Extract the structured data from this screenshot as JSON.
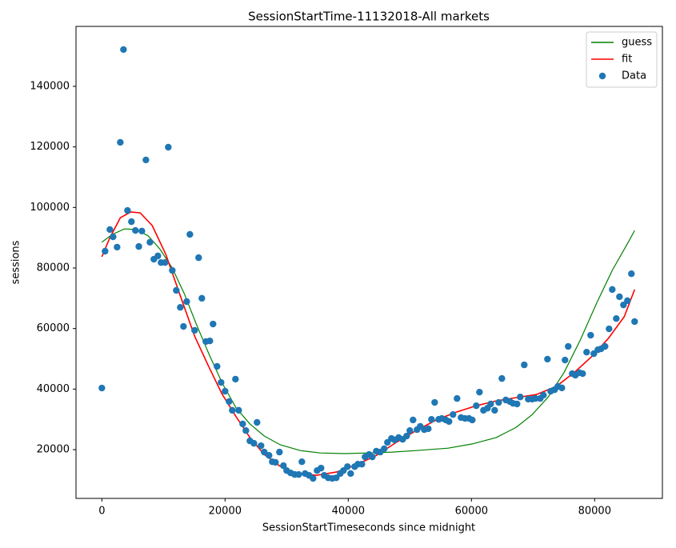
{
  "chart_data": {
    "type": "line",
    "title": "SessionStartTime-11132018-All markets",
    "x_label": "SessionStartTimeseconds since midnight",
    "y_label": "sessions",
    "xlim": [
      -4200,
      91000
    ],
    "ylim": [
      3900,
      159800
    ],
    "xticks": [
      0,
      20000,
      40000,
      60000,
      80000
    ],
    "yticks": [
      20000,
      40000,
      60000,
      80000,
      100000,
      120000,
      140000
    ],
    "legend": "upper right",
    "series": [
      {
        "name": "guess",
        "type": "line",
        "color": "#008000",
        "x": [
          0,
          1690,
          3640,
          5580,
          7530,
          9480,
          11430,
          13380,
          15320,
          17530,
          19610,
          21820,
          24030,
          26360,
          28960,
          32210,
          35450,
          39350,
          43250,
          47140,
          51040,
          56230,
          60130,
          64030,
          67270,
          69870,
          72470,
          75060,
          77660,
          80260,
          82860,
          85450,
          86490
        ],
        "values": [
          88500,
          91100,
          92900,
          92700,
          90600,
          86100,
          80000,
          71500,
          61500,
          50900,
          41700,
          33700,
          28500,
          24500,
          21600,
          19700,
          18900,
          18700,
          18900,
          19200,
          19700,
          20500,
          21900,
          24000,
          27400,
          31600,
          37400,
          45600,
          56200,
          68100,
          79200,
          88500,
          92400
        ]
      },
      {
        "name": "fit",
        "type": "line",
        "color": "#ff0000",
        "x": [
          0,
          1300,
          3000,
          4680,
          6230,
          8180,
          10390,
          12730,
          15060,
          17270,
          19480,
          21820,
          24030,
          26360,
          28960,
          31560,
          34810,
          38050,
          41300,
          44550,
          47790,
          51040,
          54290,
          57530,
          60780,
          64030,
          67270,
          70520,
          73770,
          76750,
          79610,
          82210,
          84810,
          86490
        ],
        "values": [
          83700,
          90000,
          96600,
          98500,
          98200,
          94000,
          84500,
          70800,
          57500,
          47800,
          38500,
          30800,
          24000,
          18400,
          14500,
          12300,
          11500,
          12600,
          15000,
          18100,
          22400,
          26300,
          29800,
          32400,
          34500,
          36100,
          37200,
          38200,
          40900,
          45600,
          50900,
          56700,
          63900,
          72900
        ]
      },
      {
        "name": "Data",
        "type": "scatter",
        "color": "#1f77b4",
        "x": [
          0,
          520,
          1300,
          1820,
          2470,
          2990,
          3510,
          4160,
          4800,
          5450,
          6000,
          6500,
          7150,
          7800,
          8440,
          9090,
          9610,
          10260,
          10780,
          11430,
          12080,
          12730,
          13250,
          13770,
          14290,
          15060,
          15710,
          16230,
          16880,
          17530,
          18050,
          18700,
          19350,
          20000,
          20650,
          21170,
          21690,
          22210,
          22860,
          23380,
          24030,
          24680,
          25190,
          25840,
          26360,
          27140,
          27660,
          28180,
          28830,
          29480,
          30000,
          30650,
          31300,
          31950,
          32470,
          32990,
          33640,
          34290,
          34940,
          35580,
          36100,
          36750,
          37400,
          38050,
          38700,
          39220,
          39870,
          40390,
          41040,
          41560,
          42210,
          42730,
          43380,
          43900,
          44550,
          45190,
          45840,
          46360,
          47010,
          47530,
          48180,
          48830,
          49480,
          50000,
          50520,
          51170,
          51690,
          52340,
          52990,
          53510,
          54030,
          54680,
          55190,
          55840,
          56360,
          57010,
          57660,
          58310,
          58960,
          59610,
          60130,
          60780,
          61300,
          61950,
          62600,
          63120,
          63770,
          64420,
          64940,
          65580,
          66230,
          66750,
          67400,
          67920,
          68570,
          69220,
          69870,
          70390,
          71170,
          71690,
          72340,
          72860,
          73510,
          74030,
          74680,
          75190,
          75710,
          76360,
          76880,
          77530,
          78050,
          78700,
          79350,
          79870,
          80520,
          81040,
          81690,
          82340,
          82860,
          83510,
          84030,
          84680,
          85320,
          85970,
          86490
        ],
        "values": [
          40350,
          85550,
          92700,
          90300,
          86900,
          121500,
          152150,
          99000,
          95300,
          92400,
          87100,
          92200,
          115700,
          88500,
          82900,
          84000,
          81800,
          81800,
          119900,
          79200,
          72600,
          67000,
          60700,
          68900,
          91100,
          59400,
          83400,
          70000,
          55700,
          55900,
          61500,
          47500,
          42200,
          39300,
          35900,
          33000,
          43300,
          33000,
          28500,
          26300,
          22900,
          22100,
          29000,
          21300,
          19200,
          18100,
          16000,
          15800,
          19200,
          14700,
          13100,
          12300,
          11800,
          11800,
          16000,
          12100,
          11500,
          10500,
          13100,
          13900,
          11500,
          10700,
          10500,
          10700,
          12100,
          13100,
          14400,
          12100,
          14400,
          15200,
          15200,
          17600,
          18400,
          17600,
          19500,
          19200,
          20300,
          22400,
          23700,
          23200,
          24000,
          23400,
          24500,
          26300,
          29800,
          26600,
          27700,
          26600,
          26900,
          30000,
          35600,
          30000,
          30300,
          29800,
          29300,
          31600,
          36900,
          30600,
          30300,
          30300,
          29800,
          34500,
          39000,
          33000,
          33700,
          35100,
          33000,
          35600,
          43500,
          36400,
          35900,
          35300,
          35100,
          37400,
          48000,
          36700,
          36700,
          36900,
          36900,
          38000,
          49900,
          39300,
          39800,
          40900,
          40400,
          49600,
          54100,
          45100,
          44600,
          45400,
          45100,
          52200,
          57800,
          51700,
          53000,
          53300,
          54100,
          59900,
          72900,
          63300,
          70500,
          67800,
          69200,
          78100,
          62300
        ]
      }
    ]
  }
}
